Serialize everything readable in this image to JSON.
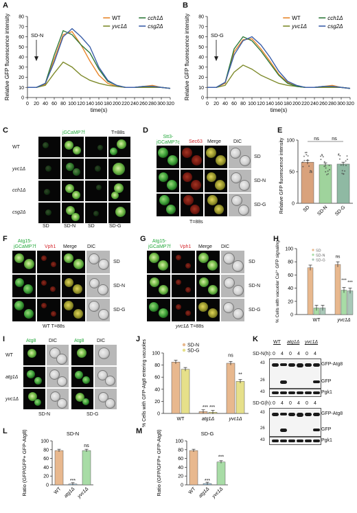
{
  "panels": {
    "A": {
      "label": "A",
      "legend": [
        "WT",
        "yvc1Δ",
        "cch1Δ",
        "csg2Δ"
      ],
      "arrow_label": "SD-N",
      "ylabel": "Relative GFP fluorescence intensity",
      "xlabel": "time(s)"
    },
    "B": {
      "label": "B",
      "legend": [
        "WT",
        "yvc1Δ",
        "cch1Δ",
        "csg2Δ"
      ],
      "arrow_label": "SD-G",
      "ylabel": "Relative GFP fluorescence intensity",
      "xlabel": "time(s)"
    },
    "C": {
      "label": "C",
      "title": "jGCaMP7f",
      "time": "T=88s",
      "rows": [
        "WT",
        "yvc1Δ",
        "cch1Δ",
        "csg2Δ"
      ],
      "cols": [
        "SD",
        "SD-N",
        "SD",
        "SD-G"
      ]
    },
    "D": {
      "label": "D",
      "ch1_line1": "Stt3-",
      "ch1_line2": "jGCaMP7c",
      "ch2": "Sec63",
      "ch3": "Merge",
      "ch4": "DIC",
      "rows": [
        "SD",
        "SD-N",
        "SD-G"
      ],
      "time": "T=88s"
    },
    "E": {
      "label": "E",
      "ylabel": "Relative GFP fluorescence intensity",
      "ns1": "ns",
      "ns2": "ns",
      "cats": [
        "SD",
        "SD-N",
        "SD-G"
      ]
    },
    "F": {
      "label": "F",
      "ch1_line1": "Atg15-",
      "ch1_line2": "jGCaMP7f",
      "ch2": "Vph1",
      "ch3": "Merge",
      "ch4": "DIC",
      "rows": [
        "SD",
        "SD-N",
        "SD-G"
      ],
      "caption": "WT T=88s"
    },
    "G": {
      "label": "G",
      "ch1_line1": "Atg15-",
      "ch1_line2": "jGCaMP7f",
      "ch2": "Vph1",
      "ch3": "Merge",
      "ch4": "DIC",
      "rows": [
        "SD",
        "SD-N",
        "SD-G"
      ],
      "caption_strain": "yvc1Δ",
      "caption_time": " T=88s"
    },
    "H": {
      "label": "H",
      "ylabel": "% Cells with vacuolar Ca²⁺ GFP signaling",
      "legend": [
        "SD",
        "SD-N",
        "SD-G"
      ],
      "groups": [
        "WT",
        "yvc1Δ"
      ],
      "sig_ns": "ns",
      "sig1": "***",
      "sig2": "***"
    },
    "I": {
      "label": "I",
      "ch1": "Atg8",
      "ch2": "DIC",
      "ch3": "Atg8",
      "ch4": "DIC",
      "rows": [
        "WT",
        "atg1Δ",
        "yvc1Δ"
      ],
      "cond1": "SD-N",
      "cond2": "SD-G"
    },
    "J": {
      "label": "J",
      "ylabel": "% Cells with GFP-Atg8 entering vacuoles",
      "legend": [
        "SD-N",
        "SD-G"
      ],
      "groups": [
        "WT",
        "atg1Δ",
        "yvc1Δ"
      ],
      "sig_ns": "ns",
      "sig_atg1": "*** ***",
      "sig_yvc1": "**"
    },
    "K": {
      "label": "K",
      "strains": [
        "WT",
        "atg1Δ",
        "yvc1Δ"
      ],
      "row1_label": "SD-N(h):",
      "row2_label": "SD-G(h):",
      "times": [
        "0",
        "4",
        "0",
        "4",
        "0",
        "4"
      ],
      "mw": [
        "43",
        "26",
        "43",
        "43",
        "26",
        "43"
      ],
      "bands": [
        "GFP-Atg8",
        "GFP",
        "Pgk1",
        "GFP-Atg8",
        "GFP",
        "Pgk1"
      ]
    },
    "L": {
      "label": "L",
      "title": "SD-N",
      "ylabel": "Ratio (GFP/GFP+ GFP-Atg8)",
      "cats": [
        "WT",
        "atg1Δ",
        "yvc1Δ"
      ],
      "sig1": "***",
      "sig2": "ns"
    },
    "M": {
      "label": "M",
      "title": "SD-G",
      "ylabel": "Ratio (GFP/GFP+ GFP-Atg8)",
      "cats": [
        "WT",
        "atg1Δ",
        "yvc1Δ"
      ],
      "sig1": "***",
      "sig2": "***"
    }
  },
  "chart_data": [
    {
      "type": "line",
      "panel": "A",
      "xlabel": "time(s)",
      "ylabel": "Relative GFP fluorescence intensity",
      "xlim": [
        0,
        320
      ],
      "ylim": [
        0,
        80
      ],
      "x": [
        0,
        20,
        40,
        60,
        80,
        100,
        120,
        140,
        160,
        180,
        200,
        220,
        240,
        260,
        280,
        300,
        320
      ],
      "series": [
        {
          "name": "WT",
          "color": "#e8862a",
          "values": [
            10,
            10,
            13,
            38,
            62,
            65,
            52,
            36,
            22,
            14,
            11,
            10,
            10,
            11,
            12,
            10,
            9
          ]
        },
        {
          "name": "yvc1Δ",
          "color": "#7d8a2a",
          "values": [
            10,
            10,
            12,
            24,
            35,
            30,
            22,
            17,
            14,
            12,
            11,
            10,
            10,
            10,
            10,
            10,
            9
          ]
        },
        {
          "name": "cch1Δ",
          "color": "#2f7a3a",
          "values": [
            10,
            10,
            14,
            42,
            66,
            62,
            52,
            44,
            28,
            16,
            12,
            10,
            10,
            11,
            11,
            10,
            9
          ]
        },
        {
          "name": "csg2Δ",
          "color": "#3a5ea8",
          "values": [
            10,
            10,
            14,
            35,
            60,
            68,
            60,
            50,
            30,
            17,
            12,
            10,
            10,
            11,
            11,
            10,
            9
          ]
        }
      ],
      "xticks": [
        0,
        20,
        40,
        60,
        80,
        100,
        120,
        140,
        160,
        180,
        200,
        220,
        240,
        260,
        280,
        300,
        320
      ],
      "yticks": [
        0,
        10,
        20,
        30,
        40,
        50,
        60,
        70,
        80
      ]
    },
    {
      "type": "line",
      "panel": "B",
      "xlabel": "time(s)",
      "ylabel": "Relative GFP fluorescence intensity",
      "xlim": [
        0,
        320
      ],
      "ylim": [
        0,
        80
      ],
      "x": [
        0,
        20,
        40,
        60,
        80,
        100,
        120,
        140,
        160,
        180,
        200,
        220,
        240,
        260,
        280,
        300,
        320
      ],
      "series": [
        {
          "name": "WT",
          "color": "#e8862a",
          "values": [
            10,
            10,
            14,
            45,
            57,
            58,
            48,
            36,
            23,
            15,
            11,
            10,
            10,
            11,
            12,
            10,
            9
          ]
        },
        {
          "name": "yvc1Δ",
          "color": "#7d8a2a",
          "values": [
            10,
            10,
            12,
            25,
            32,
            28,
            22,
            18,
            14,
            12,
            11,
            10,
            10,
            10,
            10,
            10,
            9
          ]
        },
        {
          "name": "cch1Δ",
          "color": "#2f7a3a",
          "values": [
            10,
            10,
            15,
            48,
            60,
            56,
            46,
            34,
            22,
            14,
            11,
            10,
            10,
            11,
            11,
            10,
            9
          ]
        },
        {
          "name": "csg2Δ",
          "color": "#3a5ea8",
          "values": [
            10,
            10,
            15,
            42,
            56,
            60,
            52,
            40,
            26,
            16,
            12,
            10,
            10,
            11,
            11,
            10,
            9
          ]
        }
      ],
      "xticks": [
        0,
        20,
        40,
        60,
        80,
        100,
        120,
        140,
        160,
        180,
        200,
        220,
        240,
        260,
        280,
        300,
        320
      ],
      "yticks": [
        0,
        10,
        20,
        30,
        40,
        50,
        60,
        70,
        80
      ]
    },
    {
      "type": "bar",
      "panel": "E",
      "categories": [
        "SD",
        "SD-N",
        "SD-G"
      ],
      "values": [
        65,
        61,
        62
      ],
      "colors": [
        "#d9a27c",
        "#9fd39c",
        "#8fb9a3"
      ],
      "ylim": [
        0,
        100
      ],
      "yticks": [
        0,
        50,
        100
      ],
      "ylabel": "Relative GFP fluorescence intensity"
    },
    {
      "type": "bar",
      "panel": "H",
      "categories": [
        "WT",
        "yvc1Δ"
      ],
      "series": [
        {
          "name": "SD",
          "values": [
            71,
            76
          ],
          "color": "#e8b88e"
        },
        {
          "name": "SD-N",
          "values": [
            10,
            37
          ],
          "color": "#a8dca6"
        },
        {
          "name": "SD-G",
          "values": [
            10,
            36
          ],
          "color": "#a9c8b8"
        }
      ],
      "ylim": [
        0,
        100
      ],
      "yticks": [
        0,
        20,
        40,
        60,
        80,
        100
      ],
      "ylabel": "% Cells with vacuolar Ca²⁺ GFP signaling"
    },
    {
      "type": "bar",
      "panel": "J",
      "categories": [
        "WT",
        "atg1Δ",
        "yvc1Δ"
      ],
      "series": [
        {
          "name": "SD-N",
          "values": [
            85,
            3,
            83
          ],
          "color": "#e8b88e"
        },
        {
          "name": "SD-G",
          "values": [
            73,
            2,
            53
          ],
          "color": "#e6e08a"
        }
      ],
      "ylim": [
        0,
        100
      ],
      "yticks": [
        0,
        20,
        40,
        60,
        80,
        100
      ],
      "ylabel": "% Cells with GFP-Atg8 entering vacuoles"
    },
    {
      "type": "bar",
      "panel": "L",
      "title": "SD-N",
      "categories": [
        "WT",
        "atg1Δ",
        "yvc1Δ"
      ],
      "values": [
        78,
        2,
        78
      ],
      "colors": [
        "#e8b88e",
        "#9cc2d8",
        "#a8dca6"
      ],
      "ylim": [
        0,
        100
      ],
      "yticks": [
        0,
        20,
        40,
        60,
        80,
        100
      ],
      "ylabel": "Ratio (GFP/GFP+ GFP-Atg8)"
    },
    {
      "type": "bar",
      "panel": "M",
      "title": "SD-G",
      "categories": [
        "WT",
        "atg1Δ",
        "yvc1Δ"
      ],
      "values": [
        78,
        3,
        52
      ],
      "colors": [
        "#e8b88e",
        "#9cc2d8",
        "#a8dca6"
      ],
      "ylim": [
        0,
        100
      ],
      "yticks": [
        0,
        20,
        40,
        60,
        80,
        100
      ],
      "ylabel": "Ratio (GFP/GFP+ GFP-Atg8)"
    }
  ]
}
